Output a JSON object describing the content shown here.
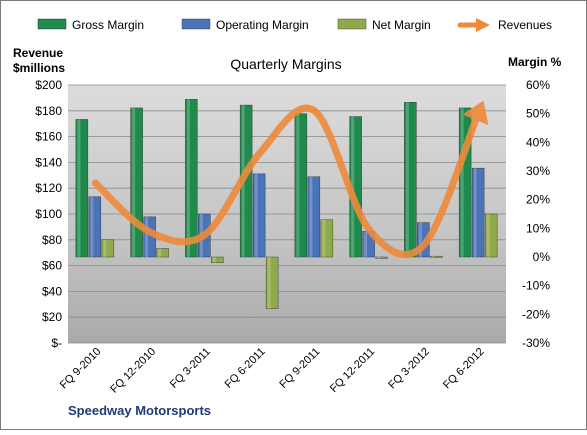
{
  "chart_data": {
    "type": "bar",
    "title": "Quarterly Margins",
    "company": "Speedway Motorsports",
    "left_axis": {
      "label_line1": "Revenue",
      "label_line2": "$millions",
      "min": 0,
      "max": 200,
      "step": 20,
      "tick_labels": [
        "$-",
        "$20",
        "$40",
        "$60",
        "$80",
        "$100",
        "$120",
        "$140",
        "$160",
        "$180",
        "$200"
      ]
    },
    "right_axis": {
      "label": "Margin %",
      "min": -30,
      "max": 60,
      "step": 10,
      "tick_labels": [
        "-30%",
        "-20%",
        "-10%",
        "0%",
        "10%",
        "20%",
        "30%",
        "40%",
        "50%",
        "60%"
      ]
    },
    "categories": [
      "FQ 9-2010",
      "FQ 12-2010",
      "FQ 3-2011",
      "FQ 6-2011",
      "FQ 9-2011",
      "FQ 12-2011",
      "FQ 3-2012",
      "FQ 6-2012"
    ],
    "series": [
      {
        "name": "Gross Margin",
        "type": "bar",
        "axis": "right",
        "color": "#1f8a4c",
        "values": [
          48,
          52,
          55,
          53,
          50,
          49,
          54,
          52
        ]
      },
      {
        "name": "Operating Margin",
        "type": "bar",
        "axis": "right",
        "color": "#4a73b8",
        "values": [
          21,
          14,
          15,
          29,
          28,
          9,
          12,
          31
        ]
      },
      {
        "name": "Net Margin",
        "type": "bar",
        "axis": "right",
        "color": "#8faa4a",
        "values": [
          6,
          3,
          -2,
          -18,
          13,
          -0.5,
          0.3,
          15
        ]
      },
      {
        "name": "Revenues",
        "type": "line",
        "axis": "left",
        "color": "#ee8a3a",
        "values": [
          124,
          86,
          84,
          147,
          180,
          88,
          76,
          179
        ]
      }
    ],
    "grid": true,
    "legend_position": "top"
  }
}
